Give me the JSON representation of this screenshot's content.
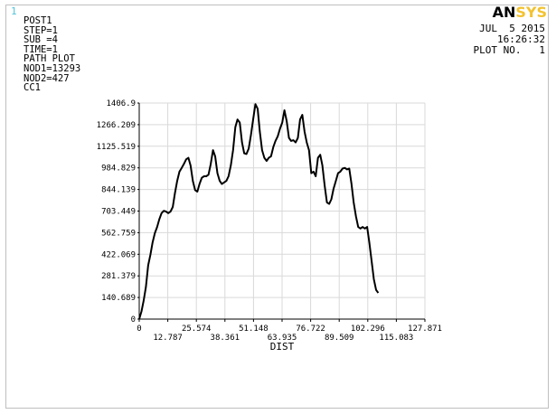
{
  "window_number": "1",
  "info": {
    "title": "POST1",
    "lines": [
      "STEP=1",
      "SUB =4",
      "TIME=1",
      "PATH PLOT",
      "NOD1=13293",
      "NOD2=427",
      "CC1"
    ]
  },
  "logo": {
    "an": "AN",
    "sys": "SYS",
    "colors": {
      "an": "#000000",
      "sys": "#f2c230"
    }
  },
  "meta": {
    "date": "JUL  5 2015",
    "time": "16:26:32",
    "plot_no": "PLOT NO.   1"
  },
  "chart_data": {
    "type": "line",
    "xlabel": "DIST",
    "ylabel": "",
    "title": "",
    "xlim": [
      0,
      127.871
    ],
    "ylim": [
      0,
      1406.9
    ],
    "x_ticks": [
      "0",
      "12.787",
      "25.574",
      "38.361",
      "51.148",
      "63.935",
      "76.722",
      "89.509",
      "102.296",
      "115.083",
      "127.871"
    ],
    "y_ticks": [
      "0",
      "140.689",
      "281.379",
      "422.069",
      "562.759",
      "703.449",
      "844.139",
      "984.829",
      "1125.519",
      "1266.209",
      "1406.9"
    ],
    "grid": true,
    "series": [
      {
        "name": "",
        "color": "#000000",
        "points": [
          [
            0,
            0
          ],
          [
            1,
            50
          ],
          [
            2,
            120
          ],
          [
            3,
            210
          ],
          [
            4,
            350
          ],
          [
            5,
            420
          ],
          [
            6,
            500
          ],
          [
            7,
            560
          ],
          [
            8,
            600
          ],
          [
            9,
            650
          ],
          [
            10,
            690
          ],
          [
            11,
            705
          ],
          [
            12,
            700
          ],
          [
            13,
            690
          ],
          [
            14,
            700
          ],
          [
            15,
            730
          ],
          [
            16,
            820
          ],
          [
            17,
            900
          ],
          [
            18,
            960
          ],
          [
            19,
            985
          ],
          [
            20,
            1010
          ],
          [
            21,
            1040
          ],
          [
            22,
            1050
          ],
          [
            23,
            1000
          ],
          [
            24,
            900
          ],
          [
            25,
            840
          ],
          [
            26,
            830
          ],
          [
            27,
            880
          ],
          [
            28,
            920
          ],
          [
            29,
            930
          ],
          [
            30,
            930
          ],
          [
            31,
            940
          ],
          [
            32,
            1010
          ],
          [
            33,
            1100
          ],
          [
            34,
            1060
          ],
          [
            35,
            950
          ],
          [
            36,
            900
          ],
          [
            37,
            880
          ],
          [
            38,
            890
          ],
          [
            39,
            900
          ],
          [
            40,
            930
          ],
          [
            41,
            1000
          ],
          [
            42,
            1100
          ],
          [
            43,
            1250
          ],
          [
            44,
            1300
          ],
          [
            45,
            1280
          ],
          [
            46,
            1150
          ],
          [
            47,
            1080
          ],
          [
            48,
            1075
          ],
          [
            49,
            1110
          ],
          [
            50,
            1200
          ],
          [
            51,
            1300
          ],
          [
            52,
            1400
          ],
          [
            53,
            1370
          ],
          [
            54,
            1220
          ],
          [
            55,
            1100
          ],
          [
            56,
            1050
          ],
          [
            57,
            1030
          ],
          [
            58,
            1050
          ],
          [
            59,
            1060
          ],
          [
            60,
            1120
          ],
          [
            61,
            1160
          ],
          [
            62,
            1190
          ],
          [
            63,
            1240
          ],
          [
            64,
            1280
          ],
          [
            65,
            1360
          ],
          [
            66,
            1290
          ],
          [
            67,
            1180
          ],
          [
            68,
            1160
          ],
          [
            69,
            1165
          ],
          [
            70,
            1150
          ],
          [
            71,
            1180
          ],
          [
            72,
            1300
          ],
          [
            73,
            1330
          ],
          [
            74,
            1220
          ],
          [
            75,
            1150
          ],
          [
            76,
            1100
          ],
          [
            77,
            950
          ],
          [
            78,
            960
          ],
          [
            79,
            930
          ],
          [
            80,
            1050
          ],
          [
            81,
            1070
          ],
          [
            82,
            1000
          ],
          [
            83,
            870
          ],
          [
            84,
            760
          ],
          [
            85,
            750
          ],
          [
            86,
            780
          ],
          [
            87,
            850
          ],
          [
            88,
            900
          ],
          [
            89,
            950
          ],
          [
            90,
            960
          ],
          [
            91,
            980
          ],
          [
            92,
            985
          ],
          [
            93,
            975
          ],
          [
            94,
            980
          ],
          [
            95,
            880
          ],
          [
            96,
            760
          ],
          [
            97,
            670
          ],
          [
            98,
            600
          ],
          [
            99,
            590
          ],
          [
            100,
            600
          ],
          [
            101,
            590
          ],
          [
            102,
            600
          ],
          [
            103,
            500
          ],
          [
            104,
            380
          ],
          [
            105,
            260
          ],
          [
            106,
            190
          ],
          [
            107,
            170
          ]
        ]
      }
    ]
  }
}
